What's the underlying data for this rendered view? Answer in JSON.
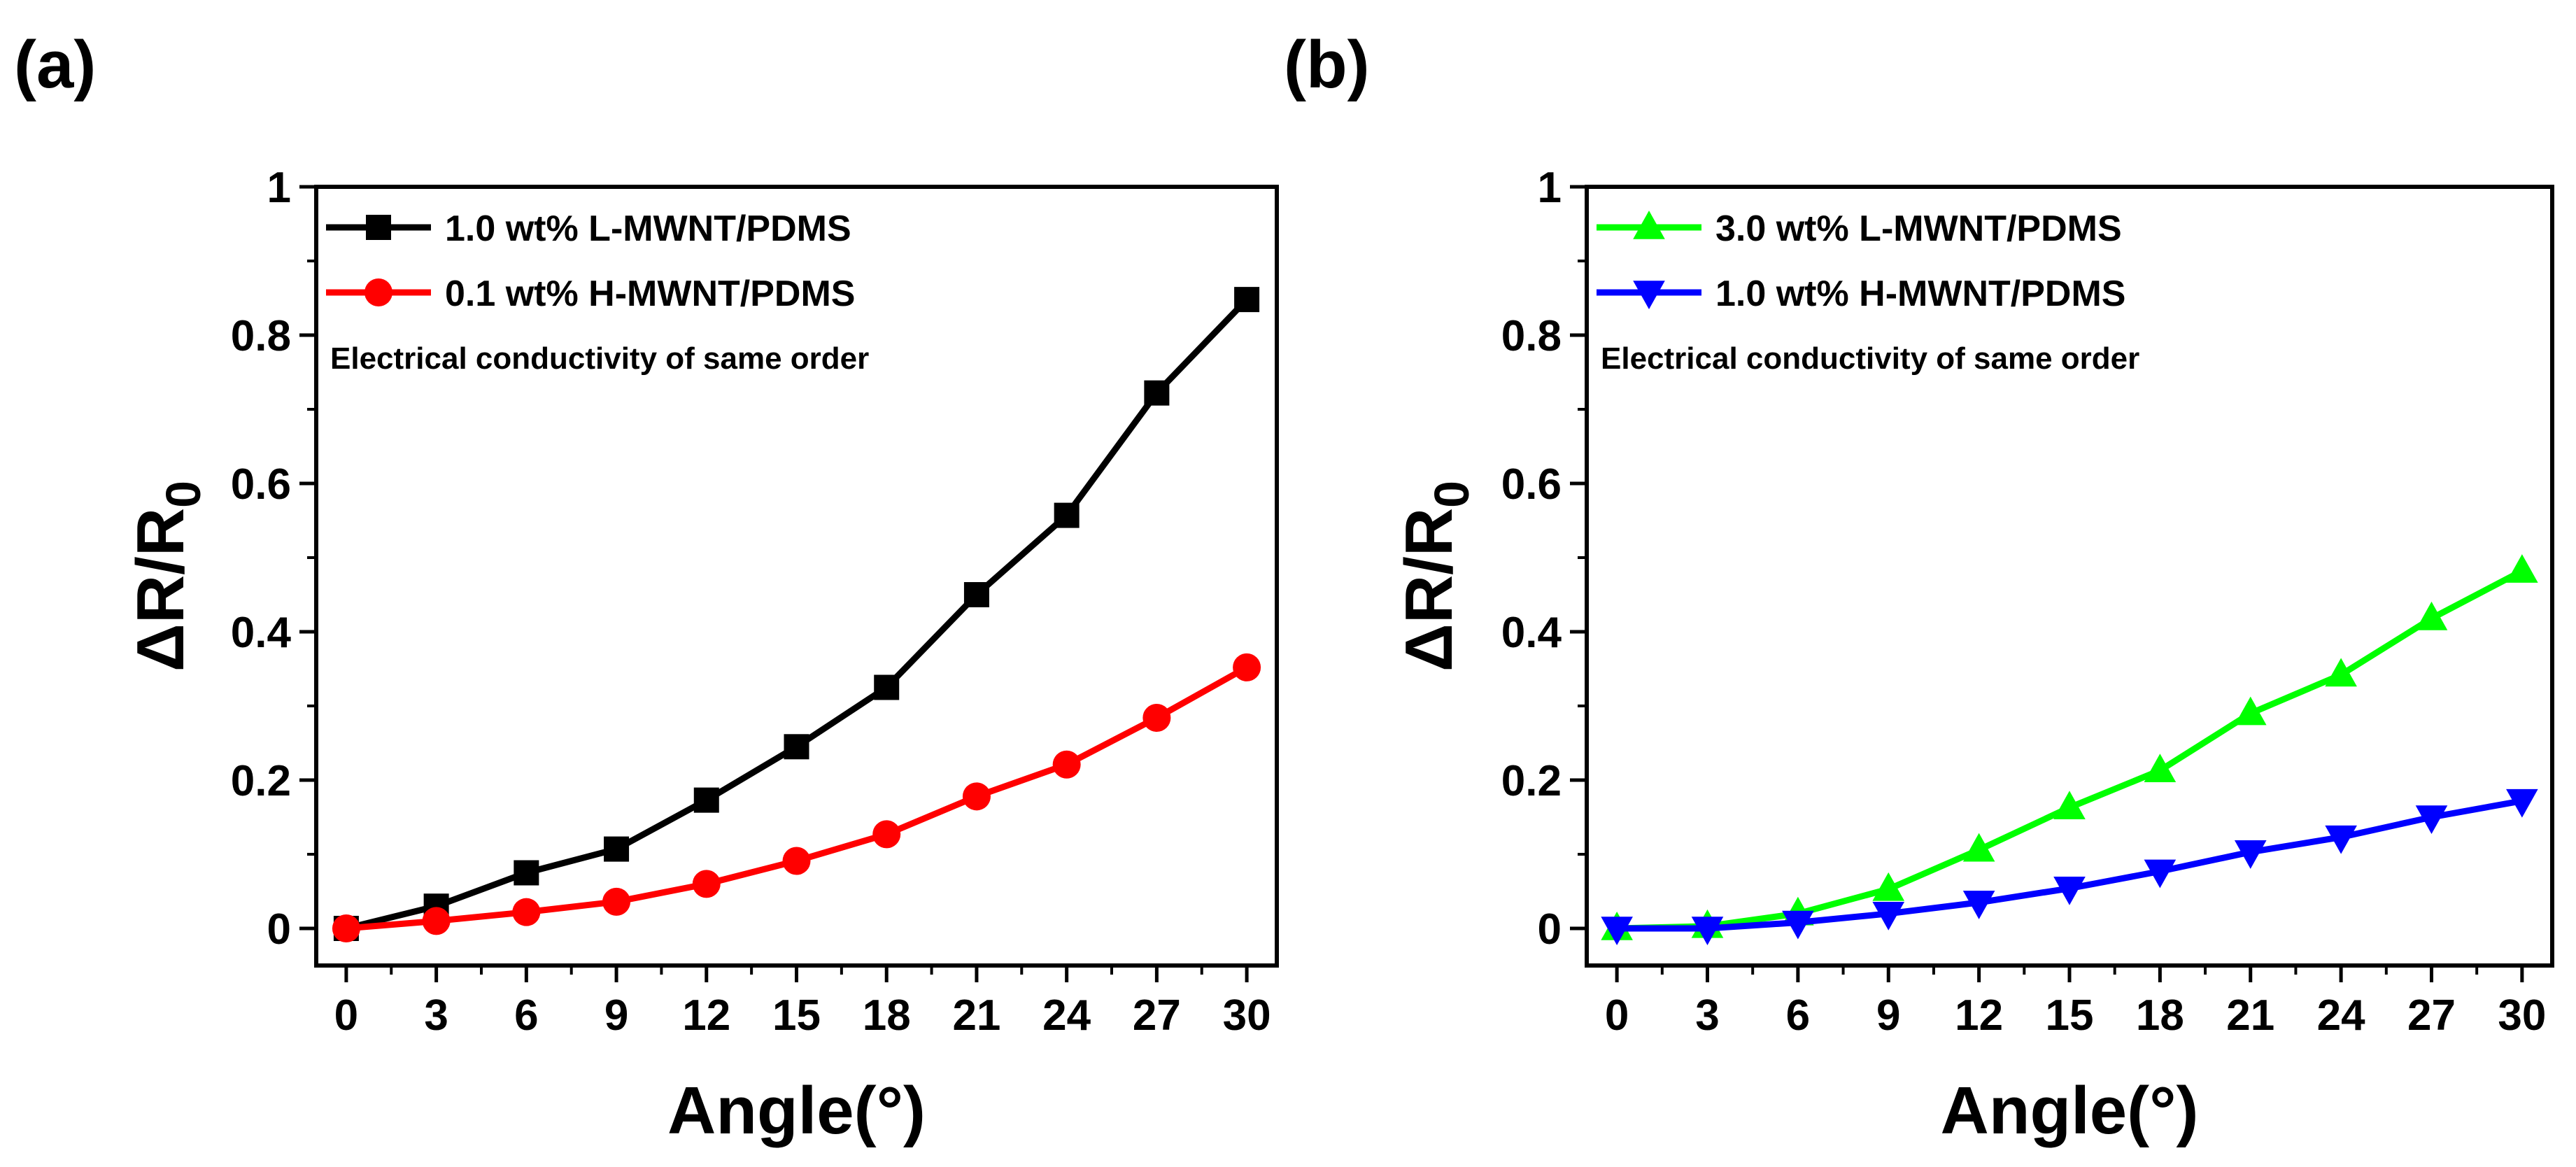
{
  "chart_data": [
    {
      "panel_label": "(a)",
      "type": "line",
      "xlabel": "Angle(°)",
      "ylabel_main": "ΔR/R",
      "ylabel_sub": "0",
      "xlim": [
        -1,
        31
      ],
      "ylim": [
        -0.05,
        1.0
      ],
      "x_ticks": [
        0,
        3,
        6,
        9,
        12,
        15,
        18,
        21,
        24,
        27,
        30
      ],
      "y_ticks": [
        0,
        0.2,
        0.4,
        0.6,
        0.8,
        1
      ],
      "y_tick_labels": [
        "0",
        "0.2",
        "0.4",
        "0.6",
        "0.8",
        "1"
      ],
      "annotation": "Electrical conductivity of same order",
      "legend_position": "top-left",
      "series": [
        {
          "name": "1.0 wt% L-MWNT/PDMS",
          "color": "#000000",
          "marker": "square",
          "x": [
            0,
            3,
            6,
            9,
            12,
            15,
            18,
            21,
            24,
            27,
            30
          ],
          "values": [
            0,
            0.03,
            0.075,
            0.107,
            0.173,
            0.245,
            0.325,
            0.45,
            0.557,
            0.722,
            0.848
          ]
        },
        {
          "name": "0.1 wt% H-MWNT/PDMS",
          "color": "#ff0000",
          "marker": "circle",
          "x": [
            0,
            3,
            6,
            9,
            12,
            15,
            18,
            21,
            24,
            27,
            30
          ],
          "values": [
            0,
            0.01,
            0.022,
            0.036,
            0.06,
            0.091,
            0.127,
            0.178,
            0.221,
            0.284,
            0.352
          ]
        }
      ]
    },
    {
      "panel_label": "(b)",
      "type": "line",
      "xlabel": "Angle(°)",
      "ylabel_main": "ΔR/R",
      "ylabel_sub": "0",
      "xlim": [
        -1,
        31
      ],
      "ylim": [
        -0.05,
        1.0
      ],
      "x_ticks": [
        0,
        3,
        6,
        9,
        12,
        15,
        18,
        21,
        24,
        27,
        30
      ],
      "y_ticks": [
        0,
        0.2,
        0.4,
        0.6,
        0.8,
        1
      ],
      "y_tick_labels": [
        "0",
        "0.2",
        "0.4",
        "0.6",
        "0.8",
        "1"
      ],
      "annotation": "Electrical conductivity of same order",
      "legend_position": "top-left",
      "series": [
        {
          "name": "3.0 wt% L-MWNT/PDMS",
          "color": "#00ff00",
          "marker": "triangle-up",
          "x": [
            0,
            3,
            6,
            9,
            12,
            15,
            18,
            21,
            24,
            27,
            30
          ],
          "values": [
            0,
            0.003,
            0.02,
            0.053,
            0.106,
            0.163,
            0.213,
            0.29,
            0.342,
            0.418,
            0.482
          ]
        },
        {
          "name": "1.0 wt% H-MWNT/PDMS",
          "color": "#0000ff",
          "marker": "triangle-down",
          "x": [
            0,
            3,
            6,
            9,
            12,
            15,
            18,
            21,
            24,
            27,
            30
          ],
          "values": [
            0,
            0,
            0.008,
            0.02,
            0.035,
            0.054,
            0.077,
            0.103,
            0.123,
            0.15,
            0.172
          ]
        }
      ]
    }
  ]
}
